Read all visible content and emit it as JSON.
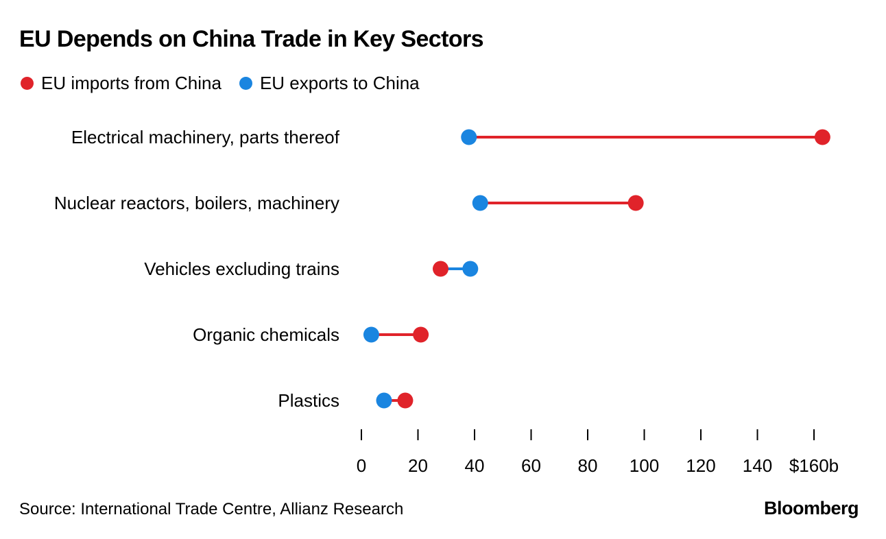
{
  "title": "EU Depends on China Trade in Key Sectors",
  "legend": [
    {
      "label": "EU imports from China",
      "color": "#e0232a"
    },
    {
      "label": "EU exports to China",
      "color": "#1a85e0"
    }
  ],
  "source": "Source: International Trade Centre, Allianz Research",
  "brand": "Bloomberg",
  "chart_data": {
    "type": "dumbbell",
    "title": "EU Depends on China Trade in Key Sectors",
    "categories": [
      "Electrical machinery, parts thereof",
      "Nuclear reactors, boilers, machinery",
      "Vehicles excluding trains",
      "Organic chemicals",
      "Plastics"
    ],
    "series": [
      {
        "name": "EU imports from China",
        "color": "#e0232a",
        "values": [
          163,
          97,
          28,
          21,
          15.5
        ]
      },
      {
        "name": "EU exports to China",
        "color": "#1a85e0",
        "values": [
          38,
          42,
          38.5,
          3.5,
          8
        ]
      }
    ],
    "xlim": [
      0,
      160
    ],
    "xticks": [
      0,
      20,
      40,
      60,
      80,
      100,
      120,
      140,
      160
    ],
    "xtick_labels": [
      "0",
      "20",
      "40",
      "60",
      "80",
      "100",
      "120",
      "140",
      "$160b"
    ],
    "grid": false,
    "legend_position": "top-left"
  }
}
